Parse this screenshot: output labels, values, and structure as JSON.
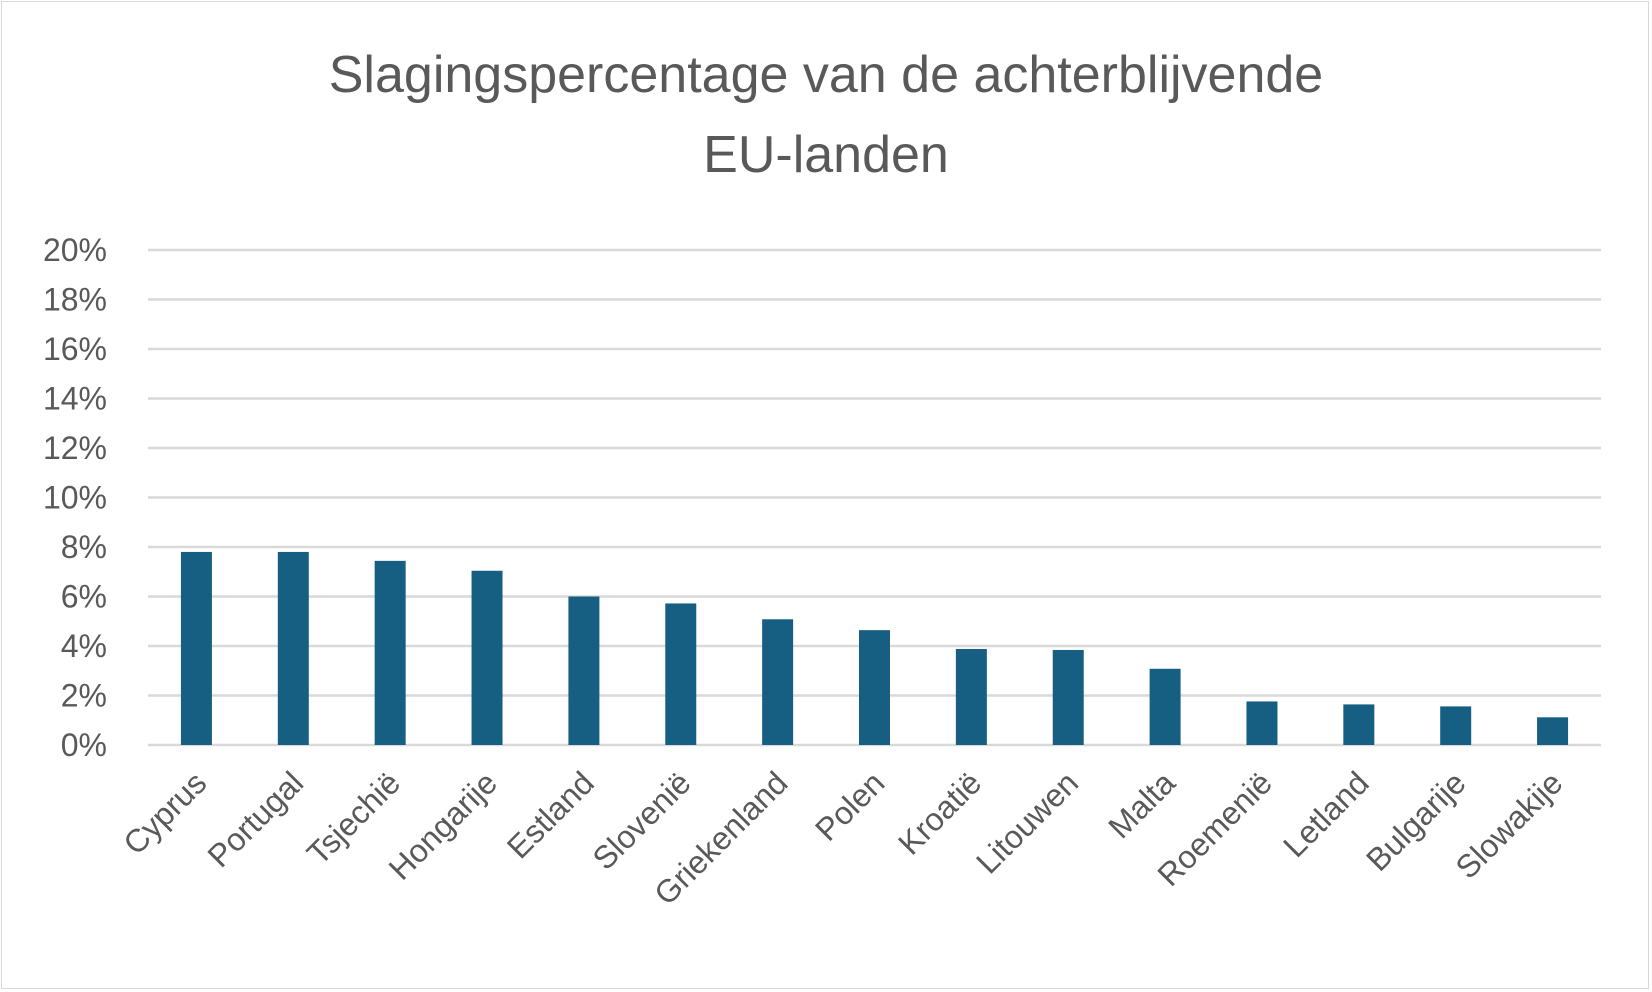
{
  "chart_data": {
    "type": "bar",
    "title": [
      "Slagingspercentage van de achterblijvende",
      "EU-landen"
    ],
    "xlabel": "",
    "ylabel": "",
    "categories": [
      "Cyprus",
      "Portugal",
      "Tsjechië",
      "Hongarije",
      "Estland",
      "Slovenië",
      "Griekenland",
      "Polen",
      "Kroatië",
      "Litouwen",
      "Malta",
      "Roemenië",
      "Letland",
      "Bulgarije",
      "Slowakije"
    ],
    "values": [
      7.8,
      7.8,
      7.44,
      7.04,
      6.0,
      5.72,
      5.08,
      4.64,
      3.88,
      3.84,
      3.08,
      1.76,
      1.64,
      1.56,
      1.12
    ],
    "ylim": [
      0,
      20
    ],
    "yticks": [
      "0%",
      "2%",
      "4%",
      "6%",
      "8%",
      "10%",
      "12%",
      "14%",
      "16%",
      "18%",
      "20%"
    ],
    "grid": true,
    "legend": "none",
    "colors": {
      "bar": "#175f82",
      "grid": "#d9d9d9",
      "text": "#595959"
    }
  }
}
